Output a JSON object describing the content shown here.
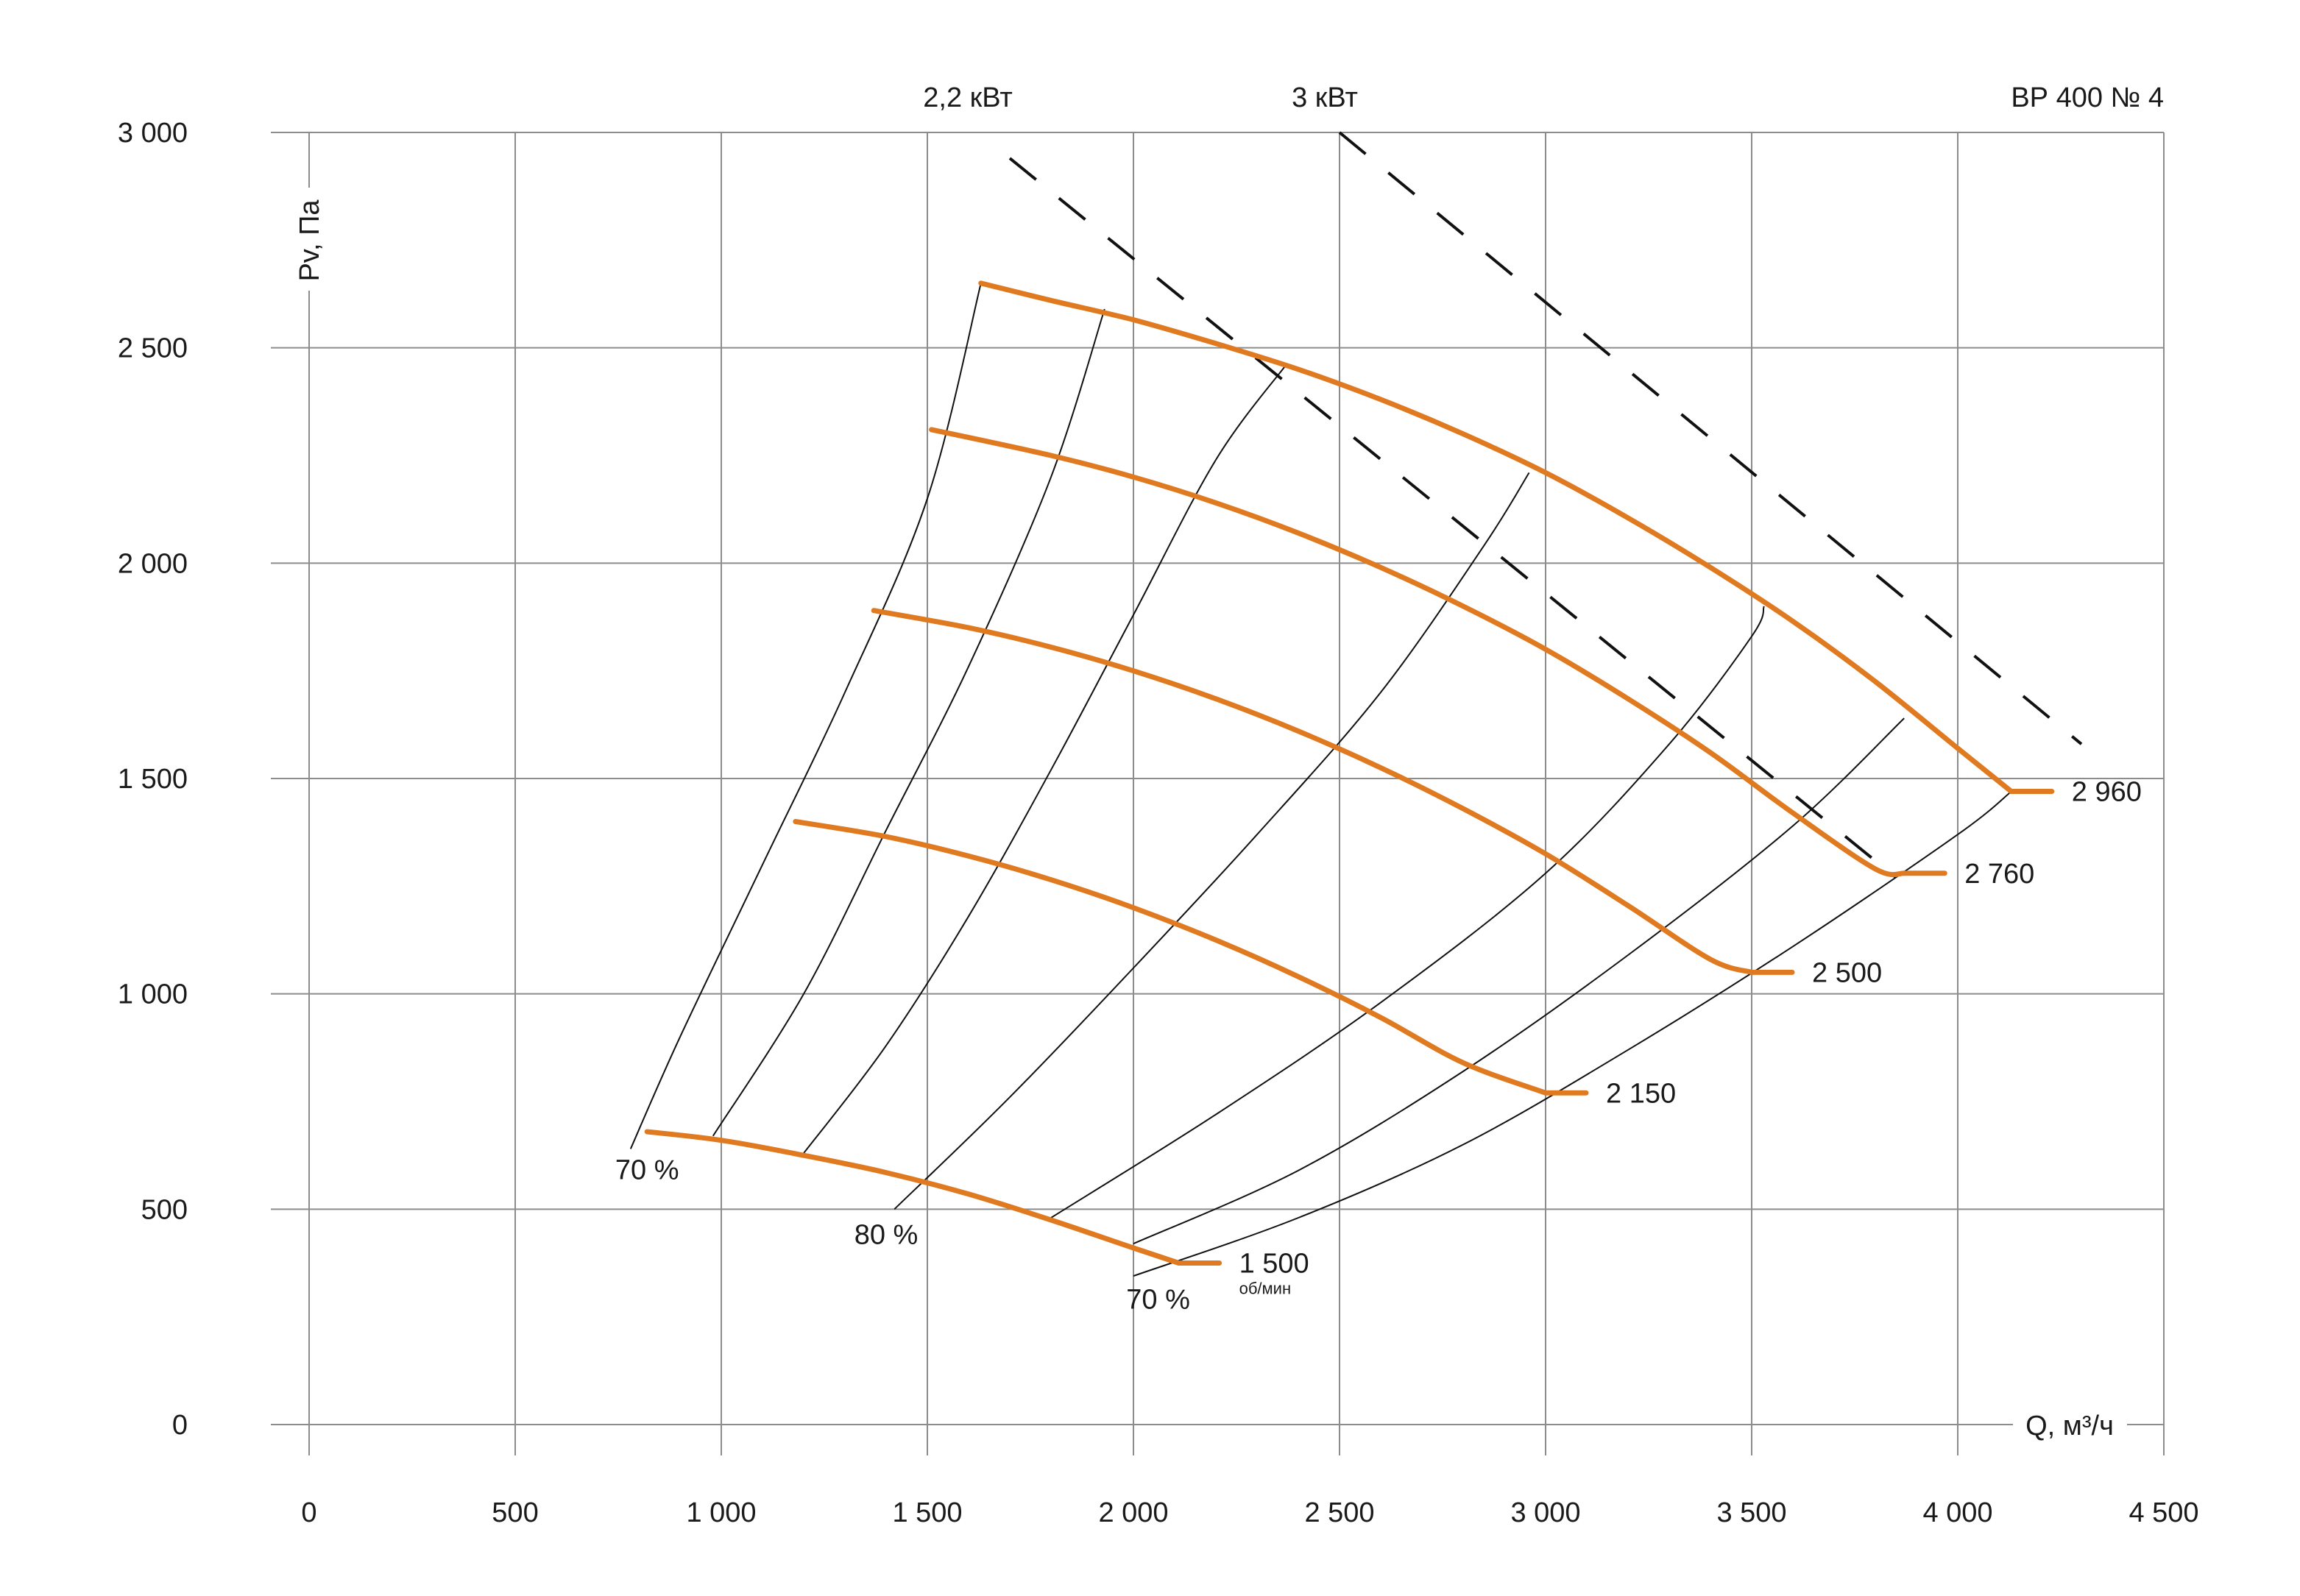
{
  "chart_data": {
    "type": "line",
    "title": "ВР 400 № 4",
    "xlabel": "Q, м³/ч",
    "ylabel": "Pv, Па",
    "xlim": [
      0,
      4500
    ],
    "ylim": [
      0,
      3000
    ],
    "grid": true,
    "x_ticks": [
      {
        "value": 0,
        "label": "0"
      },
      {
        "value": 500,
        "label": "500"
      },
      {
        "value": 1000,
        "label": "1 000"
      },
      {
        "value": 1500,
        "label": "1 500"
      },
      {
        "value": 2000,
        "label": "2 000"
      },
      {
        "value": 2500,
        "label": "2 500"
      },
      {
        "value": 3000,
        "label": "3 000"
      },
      {
        "value": 3500,
        "label": "3 500"
      },
      {
        "value": 4000,
        "label": "4 000"
      },
      {
        "value": 4500,
        "label": "4 500"
      }
    ],
    "y_ticks": [
      {
        "value": 0,
        "label": "0"
      },
      {
        "value": 500,
        "label": "500"
      },
      {
        "value": 1000,
        "label": "1 000"
      },
      {
        "value": 1500,
        "label": "1 500"
      },
      {
        "value": 2000,
        "label": "2 000"
      },
      {
        "value": 2500,
        "label": "2 500"
      },
      {
        "value": 3000,
        "label": "3 000"
      }
    ],
    "speed_unit": "об/мин",
    "series": [
      {
        "name": "1 500",
        "color": "#e07a20",
        "x": [
          820,
          1000,
          1200,
          1400,
          1600,
          1800,
          2000,
          2110
        ],
        "y": [
          680,
          660,
          625,
          585,
          535,
          475,
          410,
          375
        ]
      },
      {
        "name": "2 150",
        "color": "#e07a20",
        "x": [
          1180,
          1400,
          1600,
          1800,
          2000,
          2200,
          2400,
          2600,
          2800,
          3000
        ],
        "y": [
          1400,
          1365,
          1320,
          1265,
          1200,
          1125,
          1040,
          945,
          840,
          770
        ]
      },
      {
        "name": "2 500",
        "color": "#e07a20",
        "x": [
          1370,
          1600,
          1800,
          2000,
          2200,
          2400,
          2600,
          2800,
          3000,
          3200,
          3400,
          3500
        ],
        "y": [
          1890,
          1850,
          1805,
          1750,
          1685,
          1610,
          1525,
          1430,
          1325,
          1205,
          1080,
          1050
        ]
      },
      {
        "name": "2 760",
        "color": "#e07a20",
        "x": [
          1510,
          1800,
          2000,
          2200,
          2400,
          2600,
          2800,
          3000,
          3200,
          3400,
          3600,
          3800,
          3870
        ],
        "y": [
          2310,
          2250,
          2200,
          2140,
          2070,
          1990,
          1900,
          1800,
          1685,
          1560,
          1420,
          1290,
          1280
        ]
      },
      {
        "name": "2 960",
        "color": "#e07a20",
        "x": [
          1630,
          1800,
          2000,
          2200,
          2400,
          2600,
          2800,
          3000,
          3200,
          3400,
          3600,
          3800,
          4000,
          4130
        ],
        "y": [
          2650,
          2610,
          2565,
          2510,
          2450,
          2380,
          2300,
          2210,
          2105,
          1990,
          1865,
          1725,
          1570,
          1470
        ]
      }
    ],
    "efficiency_lines": [
      {
        "x": [
          780,
          900,
          1100,
          1300,
          1500,
          1630
        ],
        "y": [
          640,
          900,
          1300,
          1700,
          2150,
          2650
        ]
      },
      {
        "x": [
          980,
          1200,
          1400,
          1600,
          1800,
          1930
        ],
        "y": [
          670,
          1000,
          1380,
          1760,
          2200,
          2590
        ]
      },
      {
        "x": [
          1200,
          1400,
          1600,
          1800,
          2000,
          2200,
          2370
        ],
        "y": [
          630,
          880,
          1180,
          1520,
          1880,
          2240,
          2460
        ]
      },
      {
        "x": [
          1420,
          1700,
          2000,
          2300,
          2600,
          2850,
          2960
        ],
        "y": [
          500,
          760,
          1060,
          1370,
          1700,
          2040,
          2210
        ]
      },
      {
        "x": [
          1800,
          2200,
          2600,
          3000,
          3300,
          3500,
          3530
        ],
        "y": [
          480,
          720,
          980,
          1280,
          1580,
          1830,
          1900
        ]
      },
      {
        "x": [
          2000,
          2400,
          2800,
          3200,
          3600,
          3870
        ],
        "y": [
          420,
          590,
          820,
          1090,
          1390,
          1640
        ]
      },
      {
        "x": [
          2000,
          2400,
          2800,
          3200,
          3600,
          4000,
          4130
        ],
        "y": [
          345,
          480,
          650,
          870,
          1110,
          1370,
          1470
        ]
      }
    ],
    "efficiency_labels": [
      {
        "text": "70 %",
        "x": 820,
        "y": 590
      },
      {
        "text": "80 %",
        "x": 1400,
        "y": 440
      },
      {
        "text": "70 %",
        "x": 2060,
        "y": 290
      }
    ],
    "power_lines": [
      {
        "label": "2,2 кВт",
        "x": [
          1700,
          3850
        ],
        "y": [
          2940,
          1270
        ]
      },
      {
        "label": "3 кВт",
        "x": [
          2500,
          4300
        ],
        "y": [
          3000,
          1580
        ]
      }
    ]
  }
}
